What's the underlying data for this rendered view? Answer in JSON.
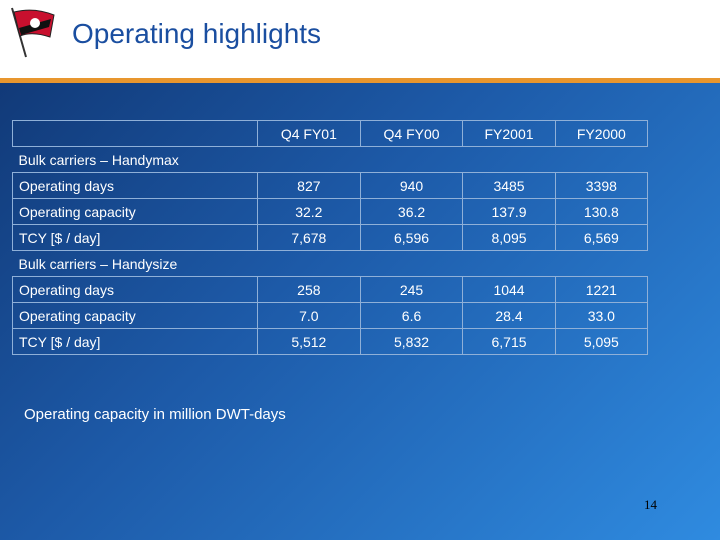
{
  "slide": {
    "title": "Operating highlights",
    "page_number": "14",
    "note": "Operating capacity in  million DWT-days"
  },
  "table": {
    "columns": [
      "Q4 FY01",
      "Q4 FY00",
      "FY2001",
      "FY2000"
    ],
    "sections": [
      {
        "name": "Bulk carriers – Handymax",
        "rows": [
          {
            "label": "Operating days",
            "values": [
              "827",
              "940",
              "3485",
              "3398"
            ]
          },
          {
            "label": "Operating capacity",
            "values": [
              "32.2",
              "36.2",
              "137.9",
              "130.8"
            ]
          },
          {
            "label": "TCY [$ / day]",
            "values": [
              "7,678",
              "6,596",
              "8,095",
              "6,569"
            ]
          }
        ]
      },
      {
        "name": "Bulk carriers – Handysize",
        "rows": [
          {
            "label": "Operating days",
            "values": [
              "258",
              "245",
              "1044",
              "1221"
            ]
          },
          {
            "label": "Operating capacity",
            "values": [
              "7.0",
              "6.6",
              "28.4",
              "33.0"
            ]
          },
          {
            "label": "TCY [$ / day]",
            "values": [
              "5,512",
              "5,832",
              "6,715",
              "5,095"
            ]
          }
        ]
      }
    ]
  },
  "colors": {
    "title": "#1a4ea0",
    "accent_line": "#e8962e",
    "flag_red": "#c8102e"
  }
}
